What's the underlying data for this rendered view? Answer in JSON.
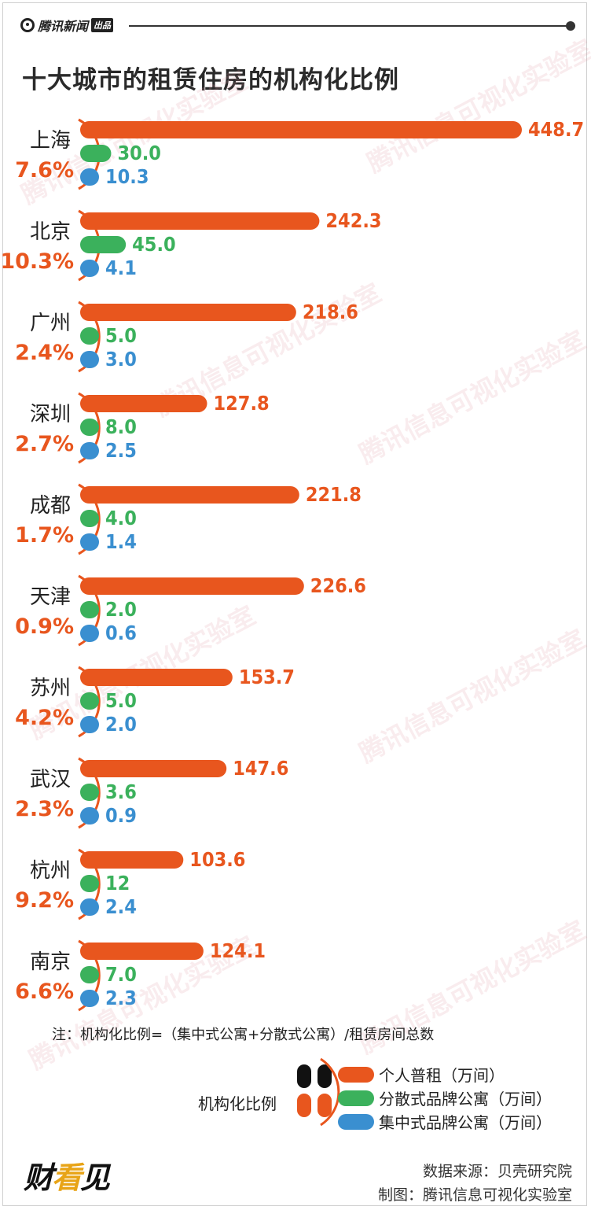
{
  "header": {
    "brand": "腾讯新闻",
    "brand_tag": "出品"
  },
  "chart_data": {
    "type": "bar",
    "title": "十大城市的租赁住房的机构化比例",
    "series": [
      {
        "name": "个人普租（万间）",
        "color": "#e8561e",
        "values": [
          448.7,
          242.3,
          218.6,
          127.8,
          221.8,
          226.6,
          153.7,
          147.6,
          103.6,
          124.1
        ]
      },
      {
        "name": "分散式品牌公寓（万间）",
        "color": "#3bb15c",
        "values": [
          30.0,
          45.0,
          5.0,
          8.0,
          4.0,
          2.0,
          5.0,
          3.6,
          12,
          7.0
        ]
      },
      {
        "name": "集中式品牌公寓（万间）",
        "color": "#3a8fd0",
        "values": [
          10.3,
          4.1,
          3.0,
          2.5,
          1.4,
          0.6,
          2.0,
          0.9,
          2.4,
          2.3
        ]
      }
    ],
    "value_labels": [
      [
        "448.7",
        "30.0",
        "10.3"
      ],
      [
        "242.3",
        "45.0",
        "4.1"
      ],
      [
        "218.6",
        "5.0",
        "3.0"
      ],
      [
        "127.8",
        "8.0",
        "2.5"
      ],
      [
        "221.8",
        "4.0",
        "1.4"
      ],
      [
        "226.6",
        "2.0",
        "0.6"
      ],
      [
        "153.7",
        "5.0",
        "2.0"
      ],
      [
        "147.6",
        "3.6",
        "0.9"
      ],
      [
        "103.6",
        "12",
        "2.4"
      ],
      [
        "124.1",
        "7.0",
        "2.3"
      ]
    ],
    "categories": [
      "上海",
      "北京",
      "广州",
      "深圳",
      "成都",
      "天津",
      "苏州",
      "武汉",
      "杭州",
      "南京"
    ],
    "ratios": [
      "7.6%",
      "10.3%",
      "2.4%",
      "2.7%",
      "1.7%",
      "0.9%",
      "4.2%",
      "2.3%",
      "9.2%",
      "6.6%"
    ],
    "ratio_color": "#e8561e",
    "legend_ratio_label": "机构化比例",
    "legend_placement": "bottom-right"
  },
  "note": "注：机构化比例=（集中式公寓+分散式公寓）/租赁房间总数",
  "footer": {
    "logo_text_1": "财",
    "logo_text_2": "看",
    "logo_text_3": "见",
    "source": "数据来源：贝壳研究院",
    "credit": "制图：腾讯信息可视化实验室"
  },
  "watermark": "腾讯信息可视化实验室"
}
